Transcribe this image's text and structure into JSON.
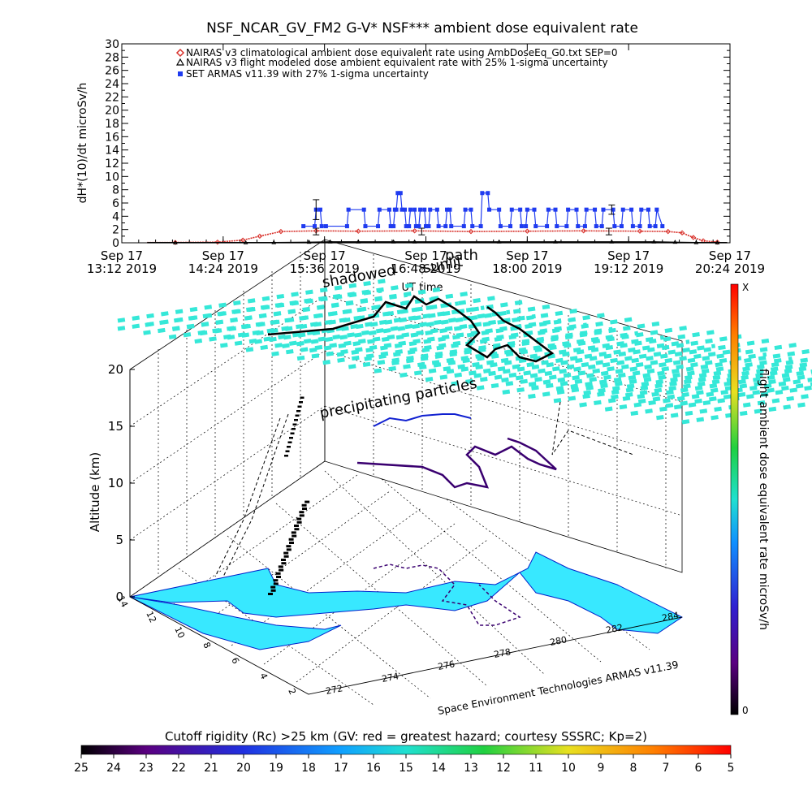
{
  "chart_data": [
    {
      "type": "line",
      "title": "NSF_NCAR_GV_FM2 G-V* NSF*** ambient dose equivalent rate",
      "xlabel": "UT time",
      "ylabel": "dH*(10)/dt microSv/h",
      "ylim": [
        0,
        30
      ],
      "y_ticks": [
        0,
        2,
        4,
        6,
        8,
        10,
        12,
        14,
        16,
        18,
        20,
        22,
        24,
        26,
        28,
        30
      ],
      "x_ticks": [
        {
          "date": "Sep 17",
          "time": "13:12 2019",
          "min": 792
        },
        {
          "date": "Sep 17",
          "time": "14:24 2019",
          "min": 864
        },
        {
          "date": "Sep 17",
          "time": "15:36 2019",
          "min": 936
        },
        {
          "date": "Sep 17",
          "time": "16:48 2019",
          "min": 1008
        },
        {
          "date": "Sep 17",
          "time": "18:00 2019",
          "min": 1080
        },
        {
          "date": "Sep 17",
          "time": "19:12 2019",
          "min": 1152
        },
        {
          "date": "Sep 17",
          "time": "20:24 2019",
          "min": 1224
        }
      ],
      "x_range_min": [
        792,
        1224
      ],
      "overlay_labels": [
        "shadowed",
        "sunlit",
        "path"
      ],
      "grid": false,
      "legend_position": "top-left",
      "series": [
        {
          "name": "NAIRAS v3 climatological ambient dose equivalent rate using AmbDoseEq_G0.txt SEP=0",
          "color": "#d8302a",
          "marker": "diamond",
          "x_min": [
            830,
            860,
            878,
            890,
            905,
            930,
            960,
            1000,
            1040,
            1080,
            1120,
            1160,
            1180,
            1190,
            1198,
            1205,
            1215
          ],
          "values": [
            0.05,
            0.1,
            0.4,
            1.0,
            1.7,
            1.8,
            1.75,
            1.8,
            1.7,
            1.75,
            1.8,
            1.75,
            1.7,
            1.5,
            0.8,
            0.3,
            0.1
          ]
        },
        {
          "name": "NAIRAS v3 flight modeled dose ambient equivalent rate with 25% 1-sigma uncertainty",
          "color": "#000000",
          "marker": "triangle",
          "x_min": [
            830,
            880,
            900,
            925,
            940,
            960,
            985,
            1000,
            1020,
            1060,
            1100,
            1140,
            1170,
            1185,
            1200,
            1215
          ],
          "values": [
            0.02,
            0.03,
            0.05,
            0.1,
            0.15,
            0.15,
            0.15,
            0.15,
            0.15,
            0.15,
            0.15,
            0.15,
            0.15,
            0.1,
            0.05,
            0.02
          ],
          "error_bars": [
            {
              "x_min": 930,
              "y": 1.7,
              "err": 0.5
            },
            {
              "x_min": 1005,
              "y": 1.7,
              "err": 0.5
            },
            {
              "x_min": 1138,
              "y": 1.7,
              "err": 0.5
            }
          ]
        },
        {
          "name": "SET ARMAS v11.39 with 27% 1-sigma uncertainty",
          "color": "#1f3bf0",
          "marker": "square",
          "x_min": [
            921,
            929,
            930,
            933,
            934,
            937,
            952,
            953,
            964,
            965,
            974,
            975,
            982,
            983,
            985,
            986,
            987,
            988,
            990,
            991,
            993,
            994,
            996,
            997,
            1000,
            1001,
            1003,
            1004,
            1007,
            1008,
            1010,
            1011,
            1016,
            1017,
            1022,
            1023,
            1025,
            1026,
            1035,
            1036,
            1040,
            1041,
            1047,
            1048,
            1052,
            1053,
            1060,
            1061,
            1068,
            1069,
            1075,
            1076,
            1079,
            1080,
            1085,
            1086,
            1094,
            1095,
            1100,
            1101,
            1108,
            1109,
            1115,
            1116,
            1121,
            1122,
            1128,
            1129,
            1133,
            1134,
            1141,
            1142,
            1147,
            1148,
            1154,
            1155,
            1160,
            1161,
            1166,
            1167,
            1171,
            1172,
            1176
          ],
          "values": [
            2.5,
            2.5,
            5.0,
            5.0,
            2.5,
            2.5,
            2.5,
            5.0,
            5.0,
            2.5,
            2.5,
            5.0,
            5.0,
            2.5,
            2.5,
            5.0,
            5.0,
            7.5,
            7.5,
            5.0,
            5.0,
            2.5,
            2.5,
            5.0,
            5.0,
            2.5,
            2.5,
            5.0,
            5.0,
            2.5,
            2.5,
            5.0,
            5.0,
            2.5,
            2.5,
            5.0,
            5.0,
            2.5,
            2.5,
            5.0,
            5.0,
            2.5,
            2.5,
            7.5,
            7.5,
            5.0,
            5.0,
            2.5,
            2.5,
            5.0,
            5.0,
            2.5,
            2.5,
            5.0,
            5.0,
            2.5,
            2.5,
            5.0,
            5.0,
            2.5,
            2.5,
            5.0,
            5.0,
            2.5,
            2.5,
            5.0,
            5.0,
            2.5,
            2.5,
            5.0,
            5.0,
            2.5,
            2.5,
            5.0,
            5.0,
            2.5,
            2.5,
            5.0,
            5.0,
            2.5,
            2.5,
            5.0,
            2.5
          ],
          "error_bars": [
            {
              "x_min": 930,
              "y": 5.0,
              "err": 1.5
            },
            {
              "x_min": 1140,
              "y": 5.0,
              "err": 0.7
            }
          ]
        }
      ]
    },
    {
      "type": "3d-surface",
      "zlabel": "Altitude (km)",
      "z_ticks": [
        0,
        5,
        10,
        15,
        20
      ],
      "x_ticks": [
        272,
        274,
        276,
        278,
        280,
        282,
        284
      ],
      "y_ticks": [
        2,
        4,
        6,
        8,
        10,
        12,
        14
      ],
      "annotations": [
        "precipitating particles"
      ],
      "colorbar_right": {
        "label": "flight ambient dose equivalent rate microSv/h",
        "top_label": "X",
        "bottom_label": "0"
      },
      "credit": "Space Environment Technologies ARMAS v11.39"
    },
    {
      "type": "colorbar",
      "title": "Cutoff rigidity (Rc) >25 km (GV: red = greatest hazard; courtesy SSSRC; Kp=2)",
      "ticks": [
        25,
        24,
        23,
        22,
        21,
        20,
        19,
        18,
        17,
        16,
        15,
        14,
        13,
        12,
        11,
        10,
        9,
        8,
        7,
        6,
        5
      ]
    }
  ]
}
